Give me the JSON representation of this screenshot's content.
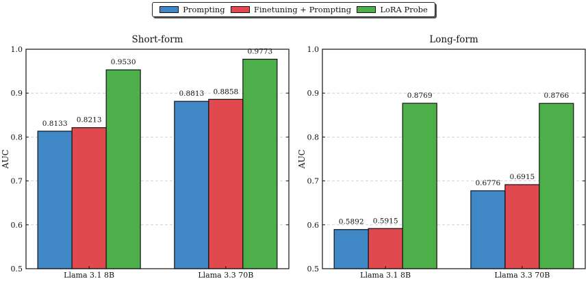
{
  "legend": [
    {
      "name": "Prompting",
      "color": "#3f88c5"
    },
    {
      "name": "Finetuning + Prompting",
      "color": "#e04a4f"
    },
    {
      "name": "LoRA Probe",
      "color": "#4caf4a"
    }
  ],
  "chart_data": [
    {
      "type": "bar",
      "title": "Short-form",
      "ylabel": "AUC",
      "xlabel": "",
      "ylim": [
        0.5,
        1.0
      ],
      "yticks": [
        "0.5",
        "0.6",
        "0.7",
        "0.8",
        "0.9",
        "1.0"
      ],
      "grid": "horizontal-dashed",
      "categories": [
        "Llama 3.1 8B",
        "Llama 3.3 70B"
      ],
      "series": [
        {
          "name": "Prompting",
          "values": [
            0.8133,
            0.8813
          ],
          "labels": [
            "0.8133",
            "0.8813"
          ]
        },
        {
          "name": "Finetuning + Prompting",
          "values": [
            0.8213,
            0.8858
          ],
          "labels": [
            "0.8213",
            "0.8858"
          ]
        },
        {
          "name": "LoRA Probe",
          "values": [
            0.953,
            0.9773
          ],
          "labels": [
            "0.9530",
            "0.9773"
          ]
        }
      ]
    },
    {
      "type": "bar",
      "title": "Long-form",
      "ylabel": "AUC",
      "xlabel": "",
      "ylim": [
        0.5,
        1.0
      ],
      "yticks": [
        "0.5",
        "0.6",
        "0.7",
        "0.8",
        "0.9",
        "1.0"
      ],
      "grid": "horizontal-dashed",
      "categories": [
        "Llama 3.1 8B",
        "Llama 3.3 70B"
      ],
      "series": [
        {
          "name": "Prompting",
          "values": [
            0.5892,
            0.6776
          ],
          "labels": [
            "0.5892",
            "0.6776"
          ]
        },
        {
          "name": "Finetuning + Prompting",
          "values": [
            0.5915,
            0.6915
          ],
          "labels": [
            "0.5915",
            "0.6915"
          ]
        },
        {
          "name": "LoRA Probe",
          "values": [
            0.8769,
            0.8766
          ],
          "labels": [
            "0.8769",
            "0.8766"
          ]
        }
      ]
    }
  ]
}
